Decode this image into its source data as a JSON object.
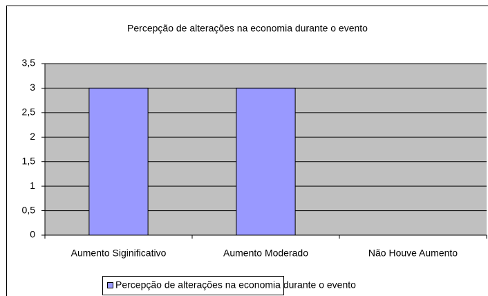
{
  "chart_data": {
    "type": "bar",
    "title": "Percepção de alterações na economia durante o evento",
    "categories": [
      "Aumento Siginificativo",
      "Aumento Moderado",
      "Não Houve Aumento"
    ],
    "series": [
      {
        "name": "Percepção de alterações na economia durante o evento",
        "color": "#9999ff",
        "values": [
          3,
          3,
          0
        ]
      }
    ],
    "ylim": [
      0,
      3.5
    ],
    "yticks": [
      0,
      {
        "value": 0.5,
        "label": "0,5"
      },
      1,
      {
        "value": 1.5,
        "label": "1,5"
      },
      2,
      {
        "value": 2.5,
        "label": "2,5"
      },
      3,
      {
        "value": 3.5,
        "label": "3,5"
      }
    ],
    "grid": true,
    "plot_background": "#c0c0c0",
    "legend": "bottom"
  }
}
